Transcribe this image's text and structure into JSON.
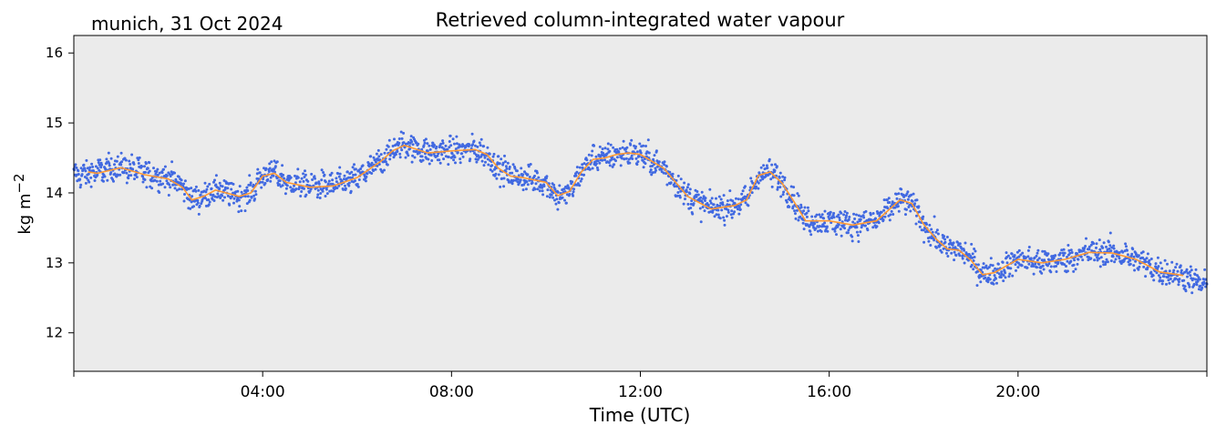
{
  "chart_data": {
    "type": "scatter",
    "title": "Retrieved column-integrated water vapour",
    "subtitle": "munich, 31 Oct 2024",
    "xlabel": "Time (UTC)",
    "ylabel": "kg m",
    "ylabel_superscript": "−2",
    "xlim": [
      "00:00",
      "24:00"
    ],
    "ylim": [
      11.45,
      16.25
    ],
    "x_tick_labels": [
      "04:00",
      "08:00",
      "12:00",
      "16:00",
      "20:00"
    ],
    "x_tick_values_hours": [
      4,
      8,
      12,
      16,
      20
    ],
    "y_tick_labels": [
      "12",
      "13",
      "14",
      "15",
      "16"
    ],
    "y_tick_values": [
      12,
      13,
      14,
      15,
      16
    ],
    "grid": false,
    "plot_background": "#ebebeb",
    "series": [
      {
        "kind": "scatter",
        "color": "#4169e1",
        "x_hours": [
          0.0,
          0.5,
          1.0,
          1.5,
          2.0,
          2.3,
          2.5,
          2.75,
          3.0,
          3.5,
          3.75,
          4.0,
          4.25,
          4.5,
          5.0,
          5.5,
          6.0,
          6.5,
          6.75,
          7.0,
          7.5,
          8.0,
          8.5,
          8.75,
          9.0,
          9.25,
          9.5,
          10.0,
          10.25,
          10.5,
          10.75,
          11.0,
          11.25,
          11.5,
          11.75,
          12.0,
          12.5,
          13.0,
          13.5,
          14.0,
          14.25,
          14.5,
          14.75,
          15.0,
          15.25,
          15.5,
          16.0,
          16.5,
          17.0,
          17.5,
          17.75,
          18.0,
          18.25,
          18.5,
          18.75,
          19.0,
          19.25,
          19.5,
          20.0,
          20.5,
          21.0,
          21.5,
          22.0,
          22.5,
          23.0,
          23.5,
          24.0
        ],
        "values": [
          14.25,
          14.3,
          14.38,
          14.28,
          14.22,
          14.1,
          13.9,
          13.95,
          14.05,
          13.95,
          14.0,
          14.25,
          14.3,
          14.15,
          14.1,
          14.1,
          14.2,
          14.45,
          14.6,
          14.7,
          14.58,
          14.6,
          14.62,
          14.55,
          14.35,
          14.25,
          14.22,
          14.15,
          13.95,
          14.0,
          14.3,
          14.5,
          14.5,
          14.55,
          14.58,
          14.55,
          14.35,
          13.95,
          13.78,
          13.82,
          13.9,
          14.25,
          14.3,
          14.15,
          13.9,
          13.6,
          13.6,
          13.55,
          13.6,
          13.9,
          13.85,
          13.55,
          13.35,
          13.2,
          13.2,
          13.05,
          12.85,
          12.85,
          13.05,
          13.0,
          13.05,
          13.15,
          13.15,
          13.05,
          12.88,
          12.82,
          12.65
        ]
      },
      {
        "kind": "line",
        "color": "#ff9933",
        "x_hours": [
          0.3,
          0.5,
          1.0,
          1.5,
          2.0,
          2.3,
          2.5,
          2.75,
          3.0,
          3.5,
          3.75,
          4.0,
          4.25,
          4.5,
          5.0,
          5.5,
          6.0,
          6.5,
          6.75,
          7.0,
          7.5,
          8.0,
          8.5,
          8.75,
          9.0,
          9.25,
          9.5,
          10.0,
          10.25,
          10.5,
          10.75,
          11.0,
          11.25,
          11.5,
          11.75,
          12.0,
          12.5,
          13.0,
          13.5,
          14.0,
          14.25,
          14.5,
          14.75,
          15.0,
          15.25,
          15.5,
          16.0,
          16.5,
          17.0,
          17.5,
          17.75,
          18.0,
          18.25,
          18.5,
          18.75,
          19.0,
          19.25,
          19.5,
          20.0,
          20.5,
          21.0,
          21.5,
          22.0,
          22.5,
          23.0,
          23.5
        ],
        "values": [
          14.3,
          14.28,
          14.36,
          14.26,
          14.2,
          14.08,
          13.9,
          13.95,
          14.04,
          13.95,
          14.0,
          14.24,
          14.28,
          14.15,
          14.08,
          14.1,
          14.22,
          14.45,
          14.6,
          14.68,
          14.57,
          14.6,
          14.62,
          14.55,
          14.35,
          14.24,
          14.22,
          14.15,
          13.96,
          14.02,
          14.3,
          14.48,
          14.5,
          14.55,
          14.57,
          14.55,
          14.35,
          13.95,
          13.77,
          13.82,
          13.9,
          14.25,
          14.3,
          14.14,
          13.88,
          13.6,
          13.6,
          13.54,
          13.6,
          13.9,
          13.85,
          13.55,
          13.35,
          13.2,
          13.18,
          13.04,
          12.83,
          12.86,
          13.05,
          13.0,
          13.05,
          13.15,
          13.14,
          13.05,
          12.87,
          12.82
        ]
      }
    ]
  }
}
